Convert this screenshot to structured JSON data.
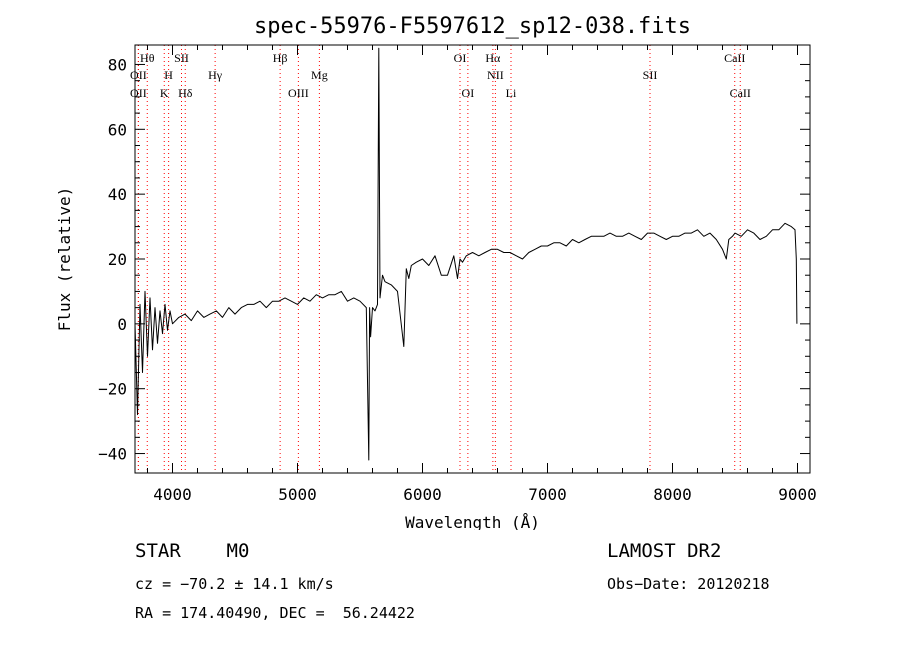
{
  "chart_data": {
    "type": "line",
    "title": "spec-55976-F5597612_sp12-038.fits",
    "xlabel": "Wavelength (Å)",
    "ylabel": "Flux (relative)",
    "xlim": [
      3700,
      9100
    ],
    "ylim": [
      -46,
      86
    ],
    "xticks": [
      4000,
      5000,
      6000,
      7000,
      8000,
      9000
    ],
    "yticks": [
      -40,
      -20,
      0,
      20,
      40,
      60,
      80
    ],
    "grid": false,
    "line_color": "#000000",
    "marker_color": "#ff0000",
    "series": [
      {
        "x": [
          3700,
          3720,
          3740,
          3760,
          3780,
          3800,
          3820,
          3840,
          3860,
          3880,
          3900,
          3920,
          3940,
          3960,
          3980,
          4000,
          4050,
          4100,
          4150,
          4200,
          4250,
          4300,
          4350,
          4400,
          4450,
          4500,
          4550,
          4600,
          4650,
          4700,
          4750,
          4800,
          4850,
          4900,
          4950,
          5000,
          5050,
          5100,
          5150,
          5200,
          5250,
          5300,
          5350,
          5400,
          5450,
          5500,
          5550,
          5570,
          5577,
          5585,
          5600,
          5620,
          5640,
          5650,
          5660,
          5680,
          5700,
          5750,
          5800,
          5850,
          5870,
          5890,
          5910,
          5950,
          6000,
          6050,
          6100,
          6150,
          6200,
          6250,
          6280,
          6300,
          6320,
          6350,
          6400,
          6450,
          6500,
          6550,
          6600,
          6650,
          6700,
          6750,
          6800,
          6850,
          6900,
          6950,
          7000,
          7050,
          7100,
          7150,
          7200,
          7250,
          7300,
          7350,
          7400,
          7450,
          7500,
          7550,
          7600,
          7650,
          7700,
          7750,
          7800,
          7850,
          7900,
          7950,
          8000,
          8050,
          8100,
          8150,
          8200,
          8250,
          8300,
          8350,
          8400,
          8430,
          8450,
          8480,
          8500,
          8550,
          8600,
          8650,
          8700,
          8750,
          8800,
          8850,
          8900,
          8950,
          8980,
          8990,
          8995
        ],
        "y": [
          0,
          -28,
          6,
          -15,
          10,
          -10,
          8,
          -8,
          5,
          -6,
          4,
          -3,
          6,
          -2,
          4,
          0,
          2,
          3,
          1,
          4,
          2,
          3,
          4,
          2,
          5,
          3,
          5,
          6,
          6,
          7,
          5,
          7,
          7,
          8,
          7,
          6,
          8,
          7,
          9,
          8,
          9,
          9,
          10,
          7,
          8,
          7,
          5,
          -42,
          5,
          -4,
          5,
          4,
          6,
          85,
          8,
          15,
          13,
          12,
          10,
          -7,
          17,
          14,
          18,
          19,
          20,
          18,
          21,
          15,
          15,
          21,
          14,
          20,
          19,
          21,
          22,
          21,
          22,
          23,
          23,
          22,
          22,
          21,
          20,
          22,
          23,
          24,
          24,
          25,
          25,
          24,
          26,
          25,
          26,
          27,
          27,
          27,
          28,
          27,
          27,
          28,
          27,
          26,
          28,
          28,
          27,
          26,
          27,
          27,
          28,
          28,
          29,
          27,
          28,
          26,
          23,
          20,
          26,
          27,
          28,
          27,
          29,
          28,
          26,
          27,
          29,
          29,
          31,
          30,
          29,
          20,
          0
        ]
      }
    ],
    "line_markers": [
      {
        "wavelength": 3727,
        "label": "OII",
        "row": 2
      },
      {
        "wavelength": 3727,
        "label": "OII",
        "row": 3
      },
      {
        "wavelength": 3798,
        "label": "Hθ",
        "row": 1
      },
      {
        "wavelength": 3934,
        "label": "K",
        "row": 3
      },
      {
        "wavelength": 3969,
        "label": "H",
        "row": 2
      },
      {
        "wavelength": 4072,
        "label": "SII",
        "row": 1
      },
      {
        "wavelength": 4102,
        "label": "Hδ",
        "row": 3
      },
      {
        "wavelength": 4341,
        "label": "Hγ",
        "row": 2
      },
      {
        "wavelength": 4861,
        "label": "Hβ",
        "row": 1
      },
      {
        "wavelength": 5007,
        "label": "OIII",
        "row": 3
      },
      {
        "wavelength": 5175,
        "label": "Mg",
        "row": 2
      },
      {
        "wavelength": 6300,
        "label": "OI",
        "row": 1
      },
      {
        "wavelength": 6363,
        "label": "OI",
        "row": 3
      },
      {
        "wavelength": 6563,
        "label": "Hα",
        "row": 1
      },
      {
        "wavelength": 6583,
        "label": "NII",
        "row": 2
      },
      {
        "wavelength": 6708,
        "label": "Li",
        "row": 3
      },
      {
        "wavelength": 7820,
        "label": "SII",
        "row": 2
      },
      {
        "wavelength": 8498,
        "label": "CaII",
        "row": 1
      },
      {
        "wavelength": 8542,
        "label": "CaII",
        "row": 3
      }
    ]
  },
  "info": {
    "class_label": "STAR    M0",
    "survey": "LAMOST DR2",
    "cz": "cz = −70.2 ± 14.1 km/s",
    "obs_date": "Obs−Date: 20120218",
    "radec": "RA = 174.40490, DEC =  56.24422"
  }
}
